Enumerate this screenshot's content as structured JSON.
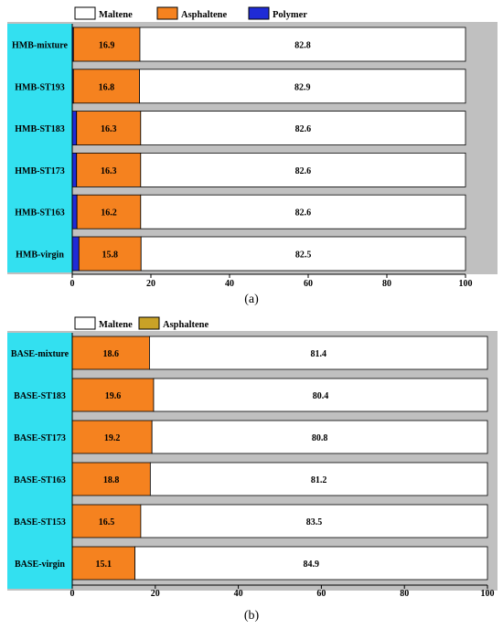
{
  "colors": {
    "maltene": "#ffffff",
    "asphaltene_a": "#f5821f",
    "asphaltene_b": "#f5821f",
    "asphaltene_legend_b": "#c9a227",
    "polymer": "#1f2bd6",
    "panel_bg": "#c0c0c0",
    "label_bg": "#33e0f0",
    "red_value": "#cc0000",
    "axis": "#000000"
  },
  "chart_data": [
    {
      "type": "bar",
      "orientation": "horizontal",
      "stacked": true,
      "caption": "(a)",
      "legend": {
        "placement": "top",
        "entries": [
          {
            "name": "Maltene",
            "color_key": "maltene"
          },
          {
            "name": "Asphaltene",
            "color_key": "asphaltene_a"
          },
          {
            "name": "Polymer",
            "color_key": "polymer"
          }
        ]
      },
      "categories": [
        "HMB-mixture",
        "HMB-ST193",
        "HMB-ST183",
        "HMB-ST173",
        "HMB-ST163",
        "HMB-virgin"
      ],
      "series": [
        {
          "name": "Polymer",
          "values": [
            0.3,
            0.3,
            1.1,
            1.1,
            1.2,
            1.7
          ],
          "labels": [
            "0.3",
            "0.3",
            "1.1",
            "1.1",
            "1.2",
            "1.7"
          ]
        },
        {
          "name": "Asphaltene",
          "values": [
            16.9,
            16.8,
            16.3,
            16.3,
            16.2,
            15.8
          ],
          "labels": [
            "16.9",
            "16.8",
            "16.3",
            "16.3",
            "16.2",
            "15.8"
          ]
        },
        {
          "name": "Maltene",
          "values": [
            82.8,
            82.9,
            82.6,
            82.6,
            82.6,
            82.5
          ],
          "labels": [
            "82.8",
            "82.9",
            "82.6",
            "82.6",
            "82.6",
            "82.5"
          ]
        }
      ],
      "xlim": [
        0,
        100
      ],
      "xticks": [
        "0",
        "20",
        "40",
        "60",
        "80",
        "100"
      ]
    },
    {
      "type": "bar",
      "orientation": "horizontal",
      "stacked": true,
      "caption": "(b)",
      "legend": {
        "placement": "top",
        "entries": [
          {
            "name": "Maltene",
            "color_key": "maltene"
          },
          {
            "name": "Asphaltene",
            "color_key": "asphaltene_legend_b"
          }
        ]
      },
      "categories": [
        "BASE-mixture",
        "BASE-ST183",
        "BASE-ST173",
        "BASE-ST163",
        "BASE-ST153",
        "BASE-virgin"
      ],
      "series": [
        {
          "name": "Asphaltene",
          "values": [
            18.6,
            19.6,
            19.2,
            18.8,
            16.5,
            15.1
          ],
          "labels": [
            "18.6",
            "19.6",
            "19.2",
            "18.8",
            "16.5",
            "15.1"
          ]
        },
        {
          "name": "Maltene",
          "values": [
            81.4,
            80.4,
            80.8,
            81.2,
            83.5,
            84.9
          ],
          "labels": [
            "81.4",
            "80.4",
            "80.8",
            "81.2",
            "83.5",
            "84.9"
          ]
        }
      ],
      "xlim": [
        0,
        100
      ],
      "xticks": [
        "0",
        "20",
        "40",
        "60",
        "80",
        "100"
      ]
    }
  ]
}
